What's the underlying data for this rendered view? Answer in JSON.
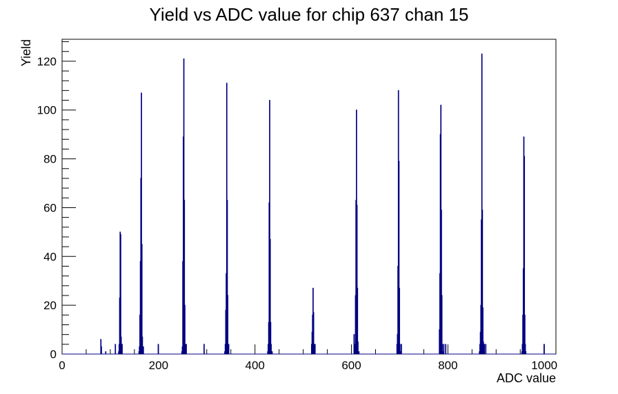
{
  "chart_data": {
    "type": "bar",
    "title": "Yield vs ADC value for chip 637 chan 15",
    "xlabel": "ADC value",
    "ylabel": "Yield",
    "xlim": [
      0,
      1024
    ],
    "ylim": [
      0,
      129
    ],
    "x_ticks": [
      0,
      200,
      400,
      600,
      800,
      1000
    ],
    "y_ticks": [
      0,
      20,
      40,
      60,
      80,
      100,
      120
    ],
    "grid": false,
    "legend": "none",
    "bin_width": 1,
    "line_color": "#000080",
    "series": [
      {
        "x": [
          80,
          81,
          90,
          110,
          117,
          118,
          119,
          120,
          121,
          122,
          123,
          124,
          159,
          160,
          161,
          162,
          163,
          164,
          165,
          166,
          167,
          168,
          199,
          248,
          249,
          250,
          251,
          252,
          253,
          254,
          255,
          256,
          257,
          294,
          337,
          338,
          339,
          340,
          341,
          342,
          343,
          344,
          345,
          426,
          427,
          428,
          429,
          430,
          431,
          432,
          433,
          434,
          435,
          517,
          518,
          519,
          520,
          521,
          522,
          523,
          524,
          605,
          607,
          608,
          609,
          610,
          611,
          612,
          613,
          614,
          615,
          694,
          695,
          696,
          697,
          698,
          699,
          700,
          701,
          702,
          703,
          782,
          783,
          784,
          785,
          786,
          787,
          788,
          789,
          790,
          791,
          795,
          865,
          866,
          867,
          868,
          869,
          870,
          871,
          872,
          873,
          874,
          875,
          878,
          953,
          954,
          955,
          956,
          957,
          958,
          959,
          960,
          961,
          999
        ],
        "values": [
          6,
          3,
          1,
          4,
          1,
          4,
          23,
          50,
          49,
          7,
          1,
          4,
          1,
          3,
          16,
          38,
          72,
          107,
          45,
          7,
          1,
          3,
          4,
          1,
          3,
          38,
          89,
          121,
          63,
          20,
          4,
          1,
          4,
          4,
          1,
          4,
          18,
          33,
          111,
          63,
          24,
          4,
          4,
          1,
          4,
          13,
          62,
          104,
          47,
          13,
          4,
          1,
          1,
          4,
          9,
          16,
          27,
          17,
          4,
          1,
          4,
          8,
          4,
          24,
          63,
          100,
          61,
          27,
          5,
          1,
          1,
          4,
          8,
          36,
          108,
          79,
          27,
          4,
          1,
          1,
          4,
          10,
          33,
          90,
          102,
          59,
          24,
          4,
          1,
          1,
          4,
          4,
          1,
          4,
          9,
          20,
          55,
          123,
          59,
          19,
          5,
          1,
          4,
          4,
          1,
          4,
          16,
          35,
          89,
          81,
          16,
          4,
          1,
          4
        ]
      }
    ]
  }
}
